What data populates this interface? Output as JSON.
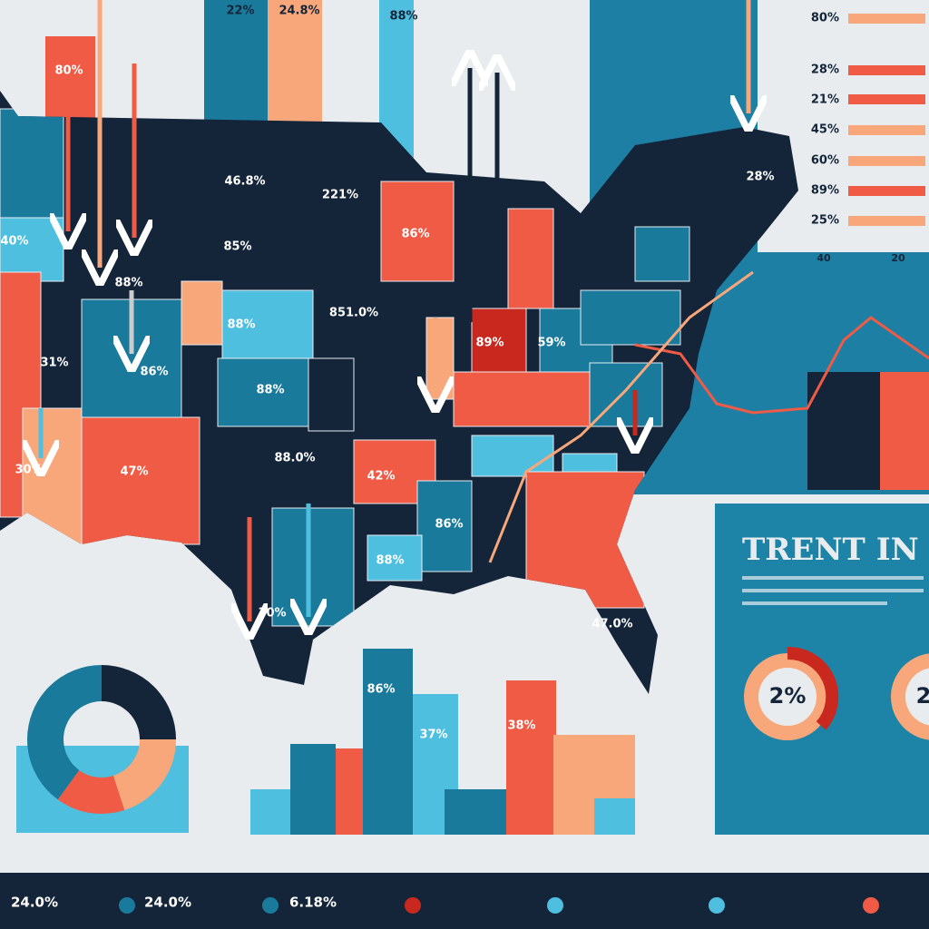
{
  "top_labels": [
    "22%",
    "24.8%",
    "88%",
    "80%"
  ],
  "map_labels": [
    "46.8%",
    "221%",
    "85%",
    "851.0%",
    "86%",
    "88%",
    "31%",
    "30%",
    "47%",
    "88.0%",
    "42%",
    "86%",
    "88%",
    "30%",
    "86%",
    "28%",
    "47.0%",
    "89%",
    "40%",
    "88%",
    "59%",
    "88%"
  ],
  "bottom_chart_labels": [
    "86%",
    "37%",
    "38%"
  ],
  "bar_list": {
    "labels": [
      "80%",
      "28%",
      "21%",
      "45%",
      "60%",
      "89%",
      "25%"
    ],
    "axis": [
      "40",
      "20"
    ]
  },
  "panel": {
    "title": "TRENT IN RI",
    "donuts": [
      "2%",
      "2"
    ]
  },
  "footer": {
    "labels": [
      "24.0%",
      "24.0%",
      "6.18%"
    ]
  }
}
